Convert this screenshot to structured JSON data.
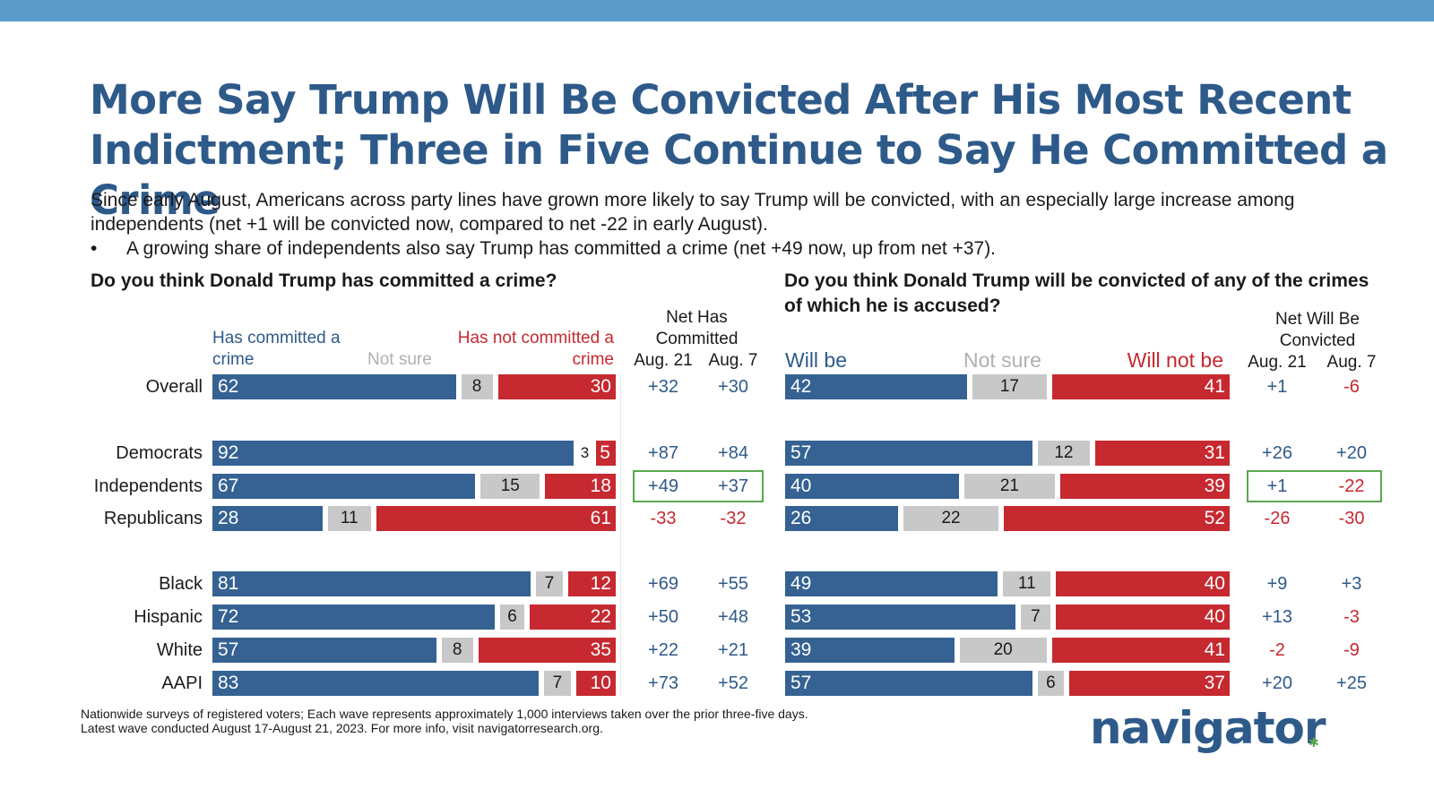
{
  "title": "More Say Trump Will Be Convicted After His Most Recent Indictment; Three in Five Continue to Say He Committed a Crime",
  "subtitle": "Since early August, Americans across party lines have grown more likely to say Trump will be convicted, with an especially large increase among independents (net +1 will be convicted now, compared to net -22 in early August).",
  "bullet": "A growing share of independents also say Trump has committed a crime (net +49 now, up from net +37).",
  "footnote": {
    "line1": "Nationwide surveys of registered voters; Each wave represents approximately 1,000 interviews taken over the prior three-five days.",
    "line2": "Latest wave conducted August 17-August 21, 2023. For more info, visit navigatorresearch.org."
  },
  "logo": "navigator",
  "colors": {
    "blue": "#356292",
    "red": "#c62930",
    "gray": "#c8c8c8",
    "title_blue": "#2e5a8a",
    "highlight_green": "#5aa84e",
    "top_bar": "#5b9bc9"
  },
  "chart_data": [
    {
      "type": "bar",
      "stacked": true,
      "orientation": "horizontal",
      "title": "Do you think Donald Trump has committed a crime?",
      "legend": {
        "yes": "Has committed a crime",
        "not_sure": "Not sure",
        "no": "Has not committed a crime"
      },
      "net_header": "Net Has Committed",
      "net_columns": [
        "Aug. 21",
        "Aug. 7"
      ],
      "categories": [
        "Overall",
        "Democrats",
        "Independents",
        "Republicans",
        "Black",
        "Hispanic",
        "White",
        "AAPI"
      ],
      "series": [
        {
          "name": "Has committed a crime",
          "values": [
            62,
            92,
            67,
            28,
            81,
            72,
            57,
            83
          ]
        },
        {
          "name": "Not sure",
          "values": [
            8,
            3,
            15,
            11,
            7,
            6,
            8,
            7
          ]
        },
        {
          "name": "Has not committed a crime",
          "values": [
            30,
            5,
            18,
            61,
            12,
            22,
            35,
            10
          ]
        }
      ],
      "net_aug21": [
        "+32",
        "+87",
        "+49",
        "-33",
        "+69",
        "+50",
        "+22",
        "+73"
      ],
      "net_aug7": [
        "+30",
        "+84",
        "+37",
        "-32",
        "+55",
        "+48",
        "+21",
        "+52"
      ],
      "highlighted_row": "Independents"
    },
    {
      "type": "bar",
      "stacked": true,
      "orientation": "horizontal",
      "title": "Do you think Donald Trump will be convicted of any of the crimes of which he is accused?",
      "legend": {
        "yes": "Will be",
        "not_sure": "Not sure",
        "no": "Will not be"
      },
      "net_header": "Net Will Be Convicted",
      "net_columns": [
        "Aug. 21",
        "Aug. 7"
      ],
      "categories": [
        "Overall",
        "Democrats",
        "Independents",
        "Republicans",
        "Black",
        "Hispanic",
        "White",
        "AAPI"
      ],
      "series": [
        {
          "name": "Will be",
          "values": [
            42,
            57,
            40,
            26,
            49,
            53,
            39,
            57
          ]
        },
        {
          "name": "Not sure",
          "values": [
            17,
            12,
            21,
            22,
            11,
            7,
            20,
            6
          ]
        },
        {
          "name": "Will not be",
          "values": [
            41,
            31,
            39,
            52,
            40,
            40,
            41,
            37
          ]
        }
      ],
      "net_aug21": [
        "+1",
        "+26",
        "+1",
        "-26",
        "+9",
        "+13",
        "-2",
        "+20"
      ],
      "net_aug7": [
        "-6",
        "+20",
        "-22",
        "-30",
        "+3",
        "-3",
        "-9",
        "+25"
      ],
      "highlighted_row": "Independents"
    }
  ]
}
